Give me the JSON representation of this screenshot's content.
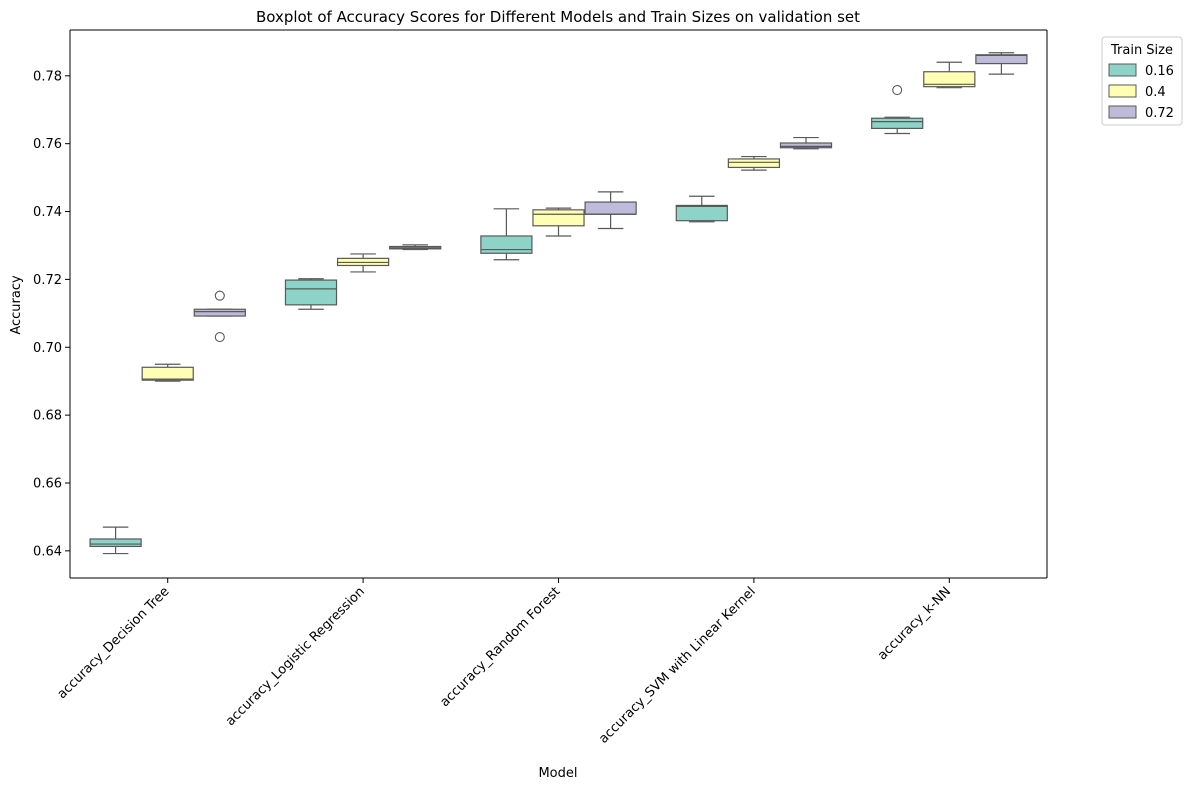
{
  "chart_data": {
    "type": "boxplot",
    "title": "Boxplot of Accuracy Scores for Different Models and Train Sizes on validation set",
    "xlabel": "Model",
    "ylabel": "Accuracy",
    "ylim": [
      0.632,
      0.7935
    ],
    "yticks": [
      0.64,
      0.66,
      0.68,
      0.7,
      0.72,
      0.74,
      0.76,
      0.78
    ],
    "ytick_labels": [
      "0.64",
      "0.66",
      "0.68",
      "0.70",
      "0.72",
      "0.74",
      "0.76",
      "0.78"
    ],
    "categories": [
      "accuracy_Decision Tree",
      "accuracy_Logistic Regression",
      "accuracy_Random Forest",
      "accuracy_SVM with Linear Kernel",
      "accuracy_k-NN"
    ],
    "legend": {
      "title": "Train Size",
      "position": "upper right, outside"
    },
    "grid": false,
    "series": [
      {
        "name": "0.16",
        "color": "#8dd3c7",
        "boxes": [
          {
            "whislo": 0.6392,
            "q1": 0.6413,
            "med": 0.642,
            "q3": 0.6435,
            "whishi": 0.647,
            "fliers": []
          },
          {
            "whislo": 0.7112,
            "q1": 0.7125,
            "med": 0.7172,
            "q3": 0.7198,
            "whishi": 0.7202,
            "fliers": []
          },
          {
            "whislo": 0.7258,
            "q1": 0.7277,
            "med": 0.7288,
            "q3": 0.7328,
            "whishi": 0.7408,
            "fliers": []
          },
          {
            "whislo": 0.737,
            "q1": 0.7373,
            "med": 0.7415,
            "q3": 0.7418,
            "whishi": 0.7445,
            "fliers": []
          },
          {
            "whislo": 0.763,
            "q1": 0.7645,
            "med": 0.7665,
            "q3": 0.7675,
            "whishi": 0.7678,
            "fliers": [
              0.7758
            ]
          }
        ]
      },
      {
        "name": "0.4",
        "color": "#ffffb3",
        "boxes": [
          {
            "whislo": 0.69,
            "q1": 0.6903,
            "med": 0.6906,
            "q3": 0.6941,
            "whishi": 0.695,
            "fliers": []
          },
          {
            "whislo": 0.7222,
            "q1": 0.7241,
            "med": 0.725,
            "q3": 0.7262,
            "whishi": 0.7275,
            "fliers": []
          },
          {
            "whislo": 0.7328,
            "q1": 0.7358,
            "med": 0.7392,
            "q3": 0.7405,
            "whishi": 0.741,
            "fliers": []
          },
          {
            "whislo": 0.7522,
            "q1": 0.753,
            "med": 0.7545,
            "q3": 0.7555,
            "whishi": 0.7562,
            "fliers": []
          },
          {
            "whislo": 0.7765,
            "q1": 0.7768,
            "med": 0.7775,
            "q3": 0.7812,
            "whishi": 0.784,
            "fliers": []
          }
        ]
      },
      {
        "name": "0.72",
        "color": "#bebada",
        "boxes": [
          {
            "whislo": 0.7092,
            "q1": 0.7092,
            "med": 0.7105,
            "q3": 0.7112,
            "whishi": 0.7112,
            "fliers": [
              0.7152,
              0.703
            ]
          },
          {
            "whislo": 0.7288,
            "q1": 0.729,
            "med": 0.7293,
            "q3": 0.7297,
            "whishi": 0.7302,
            "fliers": []
          },
          {
            "whislo": 0.735,
            "q1": 0.7392,
            "med": 0.7392,
            "q3": 0.7428,
            "whishi": 0.7458,
            "fliers": []
          },
          {
            "whislo": 0.7585,
            "q1": 0.7588,
            "med": 0.7592,
            "q3": 0.7602,
            "whishi": 0.7618,
            "fliers": []
          },
          {
            "whislo": 0.7805,
            "q1": 0.7836,
            "med": 0.786,
            "q3": 0.7862,
            "whishi": 0.7868,
            "fliers": []
          }
        ]
      }
    ]
  }
}
